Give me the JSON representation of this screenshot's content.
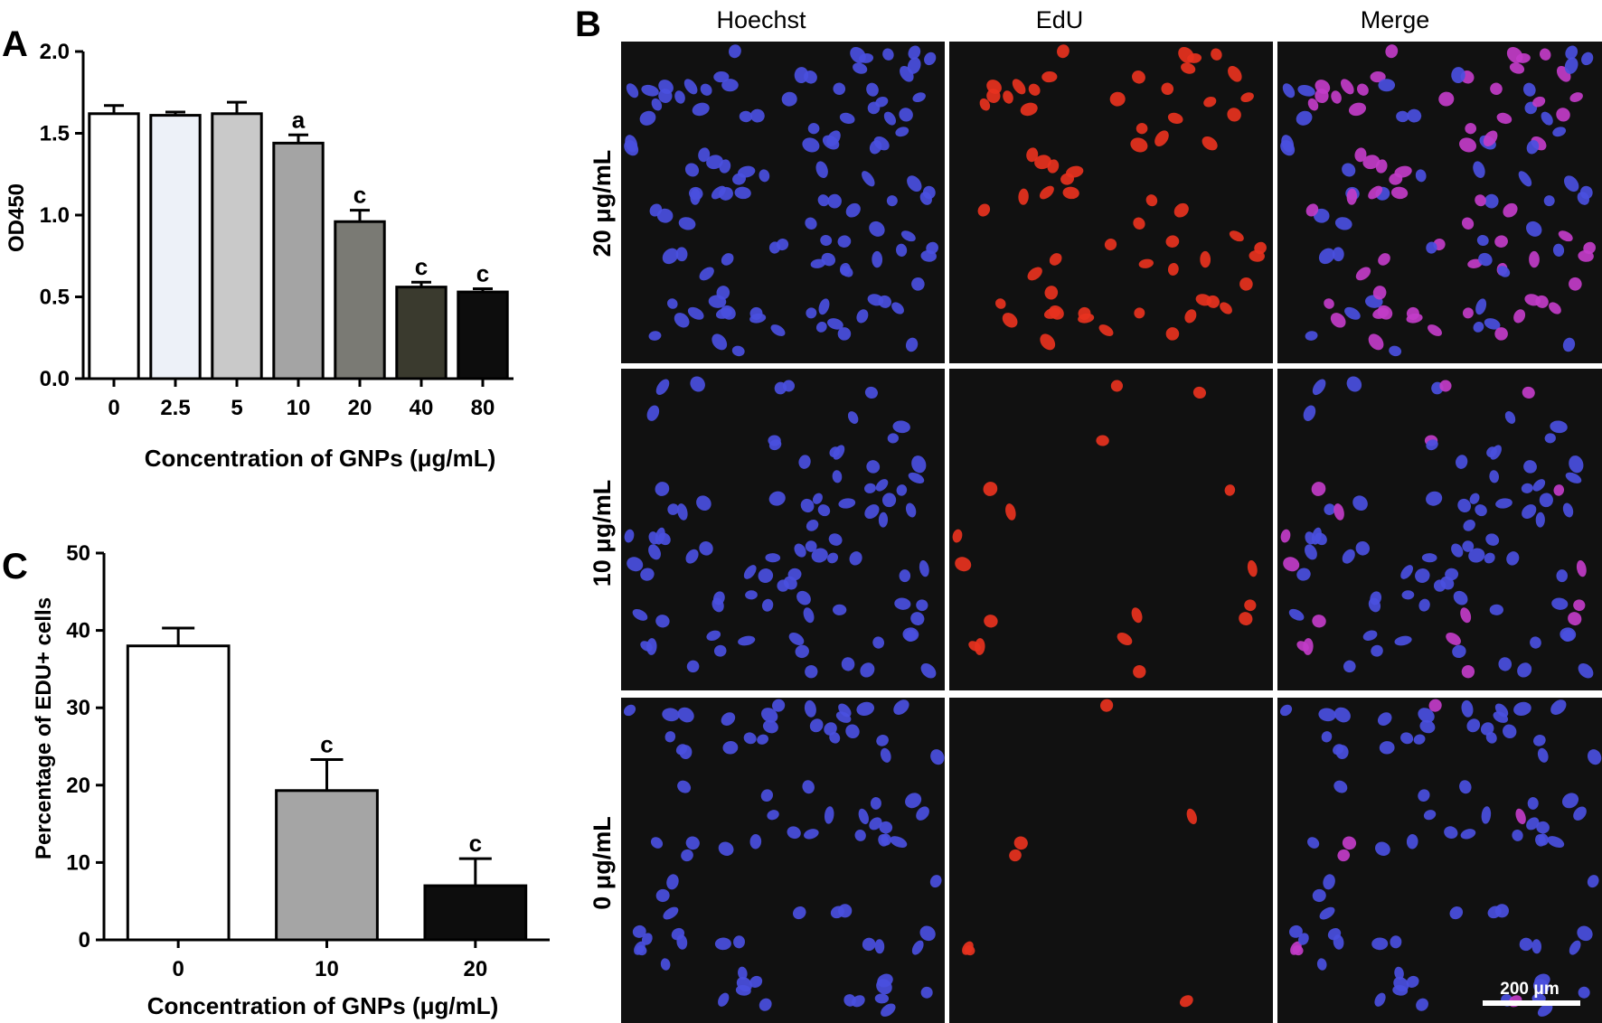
{
  "panels": {
    "a": "A",
    "b": "B",
    "c": "C"
  },
  "chart_data": [
    {
      "panel": "A",
      "type": "bar",
      "categories": [
        "0",
        "2.5",
        "5",
        "10",
        "20",
        "40",
        "80"
      ],
      "values": [
        1.62,
        1.61,
        1.62,
        1.44,
        0.96,
        0.56,
        0.53
      ],
      "errors": [
        0.05,
        0.02,
        0.07,
        0.05,
        0.07,
        0.03,
        0.02
      ],
      "annotations": [
        "",
        "",
        "",
        "a",
        "c",
        "c",
        "c"
      ],
      "bar_colors": [
        "#ffffff",
        "#edf1f8",
        "#c9c9c9",
        "#a4a4a4",
        "#7a7a74",
        "#3a3a2e",
        "#0d0d0d"
      ],
      "xlabel": "Concentration of GNPs (μg/mL)",
      "ylabel": "OD450",
      "ylim": [
        0,
        2.0
      ],
      "yticks": [
        "0.0",
        "0.5",
        "1.0",
        "1.5",
        "2.0"
      ],
      "grid": false
    },
    {
      "panel": "C",
      "type": "bar",
      "categories": [
        "0",
        "10",
        "20"
      ],
      "values": [
        38,
        19.3,
        7
      ],
      "errors": [
        2.3,
        4.0,
        3.5
      ],
      "annotations": [
        "",
        "c",
        "c"
      ],
      "bar_colors": [
        "#ffffff",
        "#a5a5a5",
        "#0d0d0d"
      ],
      "xlabel": "Concentration of GNPs (μg/mL)",
      "ylabel": "Percentage of EDU+ cells",
      "ylim": [
        0,
        50
      ],
      "yticks": [
        "0",
        "10",
        "20",
        "30",
        "40",
        "50"
      ],
      "grid": false
    }
  ],
  "micrographs": {
    "columns": [
      "Hoechst",
      "EdU",
      "Merge"
    ],
    "rows": [
      "20 μg/mL",
      "10 μg/mL",
      "0 μg/mL"
    ],
    "scale_bar": "200 μm",
    "colors": {
      "nucleus": "#4a4fe0",
      "edu": "#e8321e",
      "merge": "#c23cc8",
      "background": "#111111"
    }
  }
}
